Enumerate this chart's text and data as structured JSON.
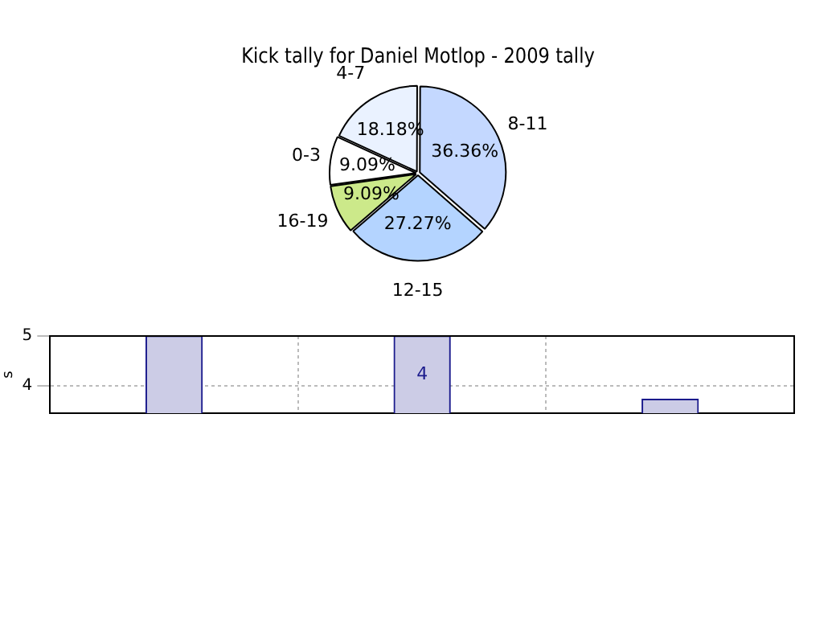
{
  "chart_data": [
    {
      "type": "pie",
      "title": "Kick tally for Daniel Motlop - 2009 tally",
      "categories": [
        "0-3",
        "4-7",
        "8-11",
        "12-15",
        "16-19"
      ],
      "values": [
        9.09,
        18.18,
        36.36,
        27.27,
        9.09
      ],
      "value_labels": [
        "9.09%",
        "18.18%",
        "36.36%",
        "27.27%",
        "9.09%"
      ],
      "colors": [
        "#ffffff",
        "#eaf2ff",
        "#c4d8ff",
        "#b4d4ff",
        "#cce98a"
      ],
      "legend": false
    },
    {
      "type": "bar",
      "ylabel": "s",
      "categories": [
        null,
        null,
        null
      ],
      "values": [
        5,
        5,
        3.72
      ],
      "annotations": [
        "4"
      ],
      "color": "#ccccE6",
      "ylim": [
        3.44,
        5
      ],
      "yticks": [
        4,
        5
      ],
      "grid": true,
      "tick_labels": "y",
      "legend": false
    }
  ]
}
